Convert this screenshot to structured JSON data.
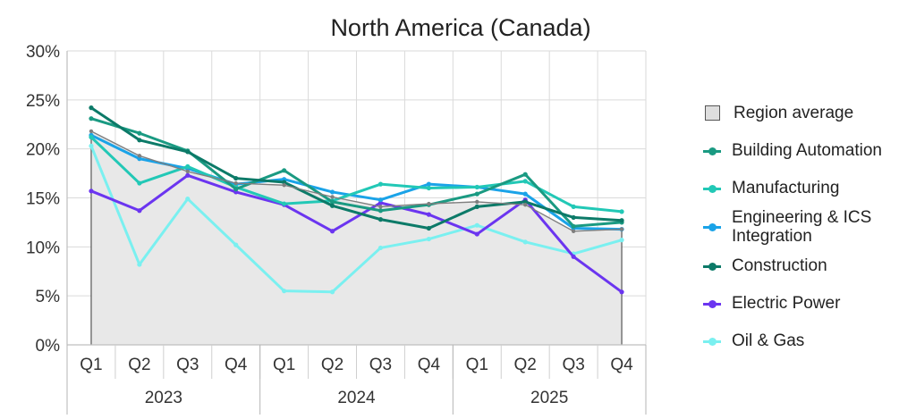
{
  "chart_data": {
    "type": "line",
    "title": "North America (Canada)",
    "xlabel": "",
    "ylabel": "",
    "ylim": [
      0,
      30
    ],
    "yticks": [
      "0%",
      "5%",
      "10%",
      "15%",
      "20%",
      "25%",
      "30%"
    ],
    "categories": [
      "Q1",
      "Q2",
      "Q3",
      "Q4",
      "Q1",
      "Q2",
      "Q3",
      "Q4",
      "Q1",
      "Q2",
      "Q3",
      "Q4"
    ],
    "year_groups": [
      {
        "label": "2023",
        "span": 4
      },
      {
        "label": "2024",
        "span": 4
      },
      {
        "label": "2025",
        "span": 4
      }
    ],
    "grid": true,
    "legend_position": "right",
    "series": [
      {
        "name": "Region average",
        "kind": "area",
        "color": "#7f7f7f",
        "fill": "#e8e8e8",
        "values": [
          21.8,
          19.3,
          17.7,
          16.5,
          16.3,
          15.1,
          14.1,
          14.4,
          14.6,
          14.3,
          11.6,
          11.8
        ]
      },
      {
        "name": "Building Automation",
        "color": "#1a9a82",
        "values": [
          23.1,
          21.6,
          19.8,
          15.9,
          17.8,
          14.6,
          13.7,
          14.3,
          15.4,
          17.4,
          12.1,
          12.5
        ]
      },
      {
        "name": "Manufacturing",
        "color": "#22c8b6",
        "values": [
          21.2,
          16.5,
          18.2,
          16.1,
          14.4,
          14.7,
          16.4,
          16.0,
          16.1,
          16.7,
          14.1,
          13.6
        ]
      },
      {
        "name": "Engineering & ICS Integration",
        "color": "#1aa3e8",
        "values": [
          21.4,
          19.0,
          18.0,
          16.4,
          16.9,
          15.6,
          14.8,
          16.4,
          16.1,
          15.4,
          11.9,
          11.8
        ]
      },
      {
        "name": "Construction",
        "color": "#0c7a68",
        "values": [
          24.2,
          20.9,
          19.7,
          17.0,
          16.6,
          14.2,
          12.8,
          11.9,
          14.1,
          14.6,
          13.0,
          12.7
        ]
      },
      {
        "name": "Electric Power",
        "color": "#6b35f0",
        "values": [
          15.7,
          13.7,
          17.3,
          15.6,
          14.3,
          11.6,
          14.5,
          13.3,
          11.3,
          14.8,
          9.0,
          5.4
        ]
      },
      {
        "name": "Oil & Gas",
        "color": "#7af0f0",
        "values": [
          20.3,
          8.2,
          14.9,
          10.2,
          5.5,
          5.4,
          9.9,
          10.8,
          12.2,
          10.5,
          9.3,
          10.7
        ]
      }
    ]
  }
}
